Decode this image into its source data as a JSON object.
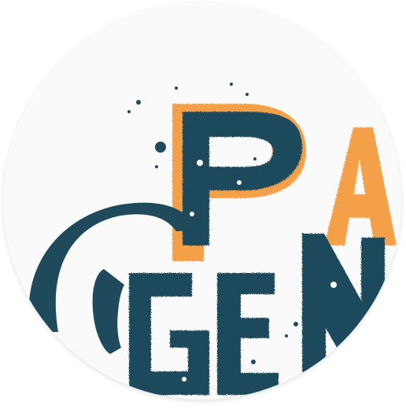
{
  "logo": {
    "icon": "phone-handset-icon",
    "lettering": [
      "Pa",
      "Ge"
    ],
    "colors": {
      "navy": "#1f4a5c",
      "orange": "#f4a04a",
      "background": "#fafafa"
    }
  }
}
